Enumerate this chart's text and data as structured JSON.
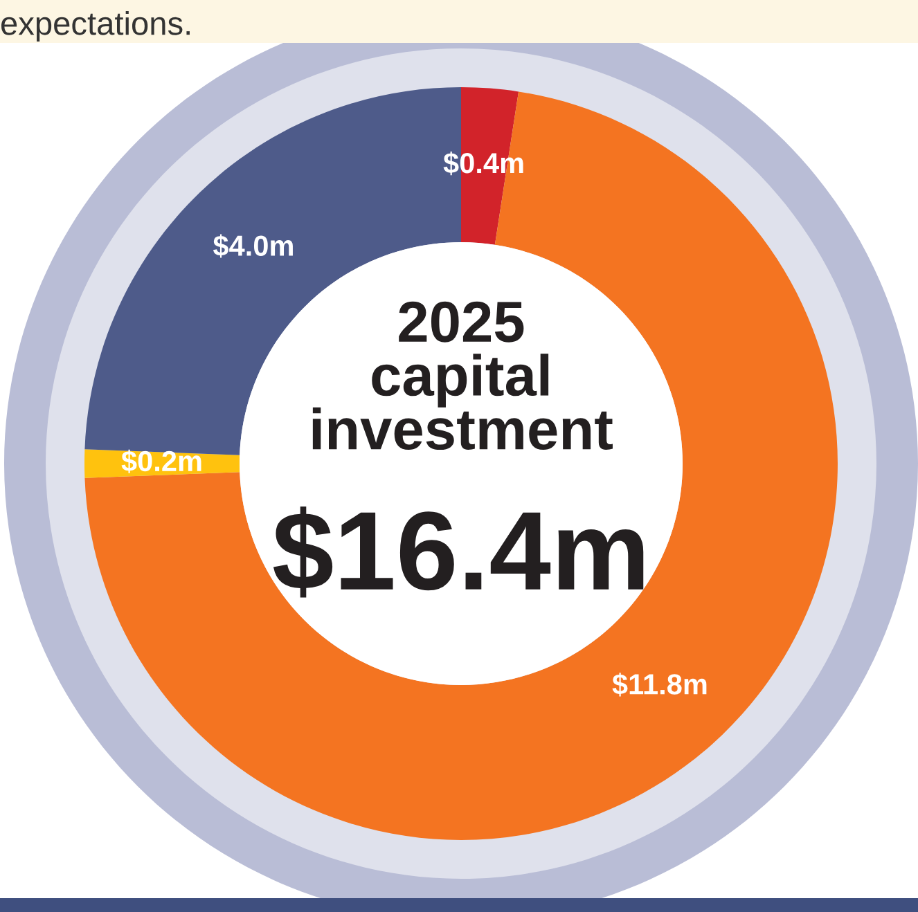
{
  "chart_data": {
    "type": "donut",
    "title": "2025\ncapital\ninvestment",
    "subtitle": "$16.4m",
    "annotations": [
      "expectations."
    ],
    "categories": [
      null,
      null,
      null,
      null
    ],
    "values": [
      0.4,
      11.8,
      0.2,
      4.0
    ],
    "value_labels": [
      "$0.4m",
      "$11.8m",
      "$0.2m",
      "$4.0m"
    ],
    "colors": [
      "#d2232a",
      "#f47421",
      "#ffc20e",
      "#4e5b8a"
    ],
    "legend": false
  }
}
